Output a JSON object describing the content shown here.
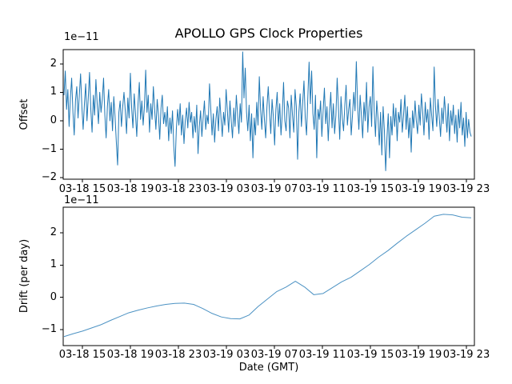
{
  "chart_data": [
    {
      "type": "line",
      "title": "APOLLO GPS Clock Properties",
      "ylabel": "Offset",
      "xlabel": "",
      "scale_label": "1e−11",
      "ylim": [
        -2.05,
        2.5
      ],
      "yticks": [
        2,
        1,
        0,
        -1,
        -2
      ],
      "ytick_labels": [
        "2",
        "1",
        "0",
        "−1",
        "−2"
      ],
      "xtick_labels": [
        "03-18 15",
        "03-18 19",
        "03-18 23",
        "03-19 03",
        "03-19 07",
        "03-19 11",
        "03-19 15",
        "03-19 19",
        "03-19 23"
      ],
      "line_color": "#1f77b4",
      "grid": false,
      "legend": null,
      "series": [
        {
          "name": "offset",
          "units": "1e-11",
          "values": [
            0.9,
            1.75,
            0.4,
            1.1,
            -0.2,
            0.8,
            1.5,
            0.3,
            -0.5,
            0.7,
            1.2,
            0.1,
            0.9,
            1.65,
            0.5,
            -0.3,
            0.6,
            1.3,
            0.0,
            0.8,
            1.7,
            0.4,
            -0.4,
            0.9,
            0.2,
            1.45,
            0.6,
            -0.1,
            1.0,
            0.3,
            0.75,
            1.5,
            0.2,
            -0.6,
            0.5,
            1.1,
            0.0,
            0.65,
            -0.35,
            0.85,
            0.15,
            -0.75,
            -1.55,
            0.3,
            0.7,
            -0.2,
            0.5,
            1.0,
            0.35,
            -0.45,
            0.8,
            0.1,
            1.67,
            0.45,
            -0.25,
            0.95,
            0.25,
            -0.55,
            0.6,
            1.35,
            0.05,
            0.7,
            -0.15,
            0.5,
            1.78,
            0.3,
            0.9,
            -0.4,
            0.6,
            0.05,
            1.2,
            0.4,
            -0.3,
            0.75,
            0.2,
            -0.65,
            0.45,
            0.9,
            -0.1,
            0.3,
            -0.2,
            0.5,
            -0.7,
            0.1,
            -0.45,
            0.35,
            -0.9,
            -1.6,
            -0.3,
            0.4,
            -0.15,
            0.6,
            -0.5,
            0.2,
            -0.8,
            0.0,
            0.45,
            -0.25,
            0.65,
            -0.05,
            0.3,
            -0.6,
            0.15,
            -0.4,
            0.55,
            -1.15,
            -0.2,
            0.35,
            -0.55,
            0.1,
            0.7,
            -0.3,
            0.2,
            -0.1,
            1.3,
            0.4,
            -0.5,
            0.25,
            -0.75,
            0.05,
            0.5,
            -0.35,
            0.8,
            0.1,
            -0.55,
            0.3,
            -0.15,
            1.1,
            0.35,
            -0.4,
            0.7,
            0.0,
            -0.6,
            0.45,
            -0.2,
            0.9,
            0.2,
            -0.45,
            0.6,
            -0.05,
            2.42,
            0.8,
            1.85,
            0.3,
            -0.35,
            0.55,
            -0.7,
            0.25,
            -1.3,
            0.1,
            -0.5,
            0.65,
            -0.15,
            1.55,
            0.4,
            -0.3,
            0.85,
            0.05,
            -0.6,
            0.5,
            1.2,
            0.3,
            -0.45,
            0.75,
            0.15,
            -0.85,
            0.4,
            1.0,
            -0.2,
            0.6,
            -0.5,
            0.25,
            1.35,
            0.0,
            -0.35,
            0.7,
            0.45,
            -0.6,
            0.9,
            0.2,
            -0.4,
            1.1,
            0.5,
            -1.35,
            0.3,
            0.95,
            -0.2,
            0.65,
            1.4,
            0.1,
            -0.5,
            0.8,
            2.06,
            0.6,
            1.75,
            0.25,
            -0.3,
            0.9,
            -1.3,
            0.4,
            0.05,
            0.7,
            -0.55,
            0.35,
            1.15,
            -0.1,
            0.5,
            -0.7,
            0.3,
            1.0,
            -0.25,
            0.6,
            -0.45,
            0.2,
            1.5,
            0.45,
            -0.65,
            0.85,
            0.1,
            -0.35,
            0.55,
            1.25,
            -0.15,
            0.4,
            0.75,
            -0.5,
            0.2,
            1.0,
            0.35,
            2.08,
            0.55,
            -0.3,
            0.9,
            0.15,
            -0.6,
            0.65,
            0.0,
            1.35,
            -0.4,
            0.5,
            0.85,
            -0.2,
            1.9,
            0.4,
            -0.55,
            0.7,
            0.1,
            -0.85,
            0.3,
            -1.2,
            0.5,
            -0.35,
            -1.75,
            -0.6,
            0.25,
            -1.3,
            0.15,
            -0.5,
            0.6,
            -0.2,
            0.45,
            -0.7,
            0.3,
            -0.05,
            0.75,
            -0.4,
            0.2,
            0.9,
            -0.3,
            0.5,
            -0.6,
            0.1,
            -1.1,
            0.35,
            -0.25,
            0.7,
            0.0,
            -0.45,
            0.55,
            -0.15,
            0.95,
            0.3,
            -0.5,
            0.65,
            -0.05,
            0.4,
            -0.65,
            0.8,
            0.2,
            -0.35,
            1.89,
            0.5,
            -0.2,
            0.75,
            0.1,
            -0.55,
            0.45,
            -0.1,
            0.85,
            0.25,
            -0.4,
            0.6,
            -0.7,
            0.35,
            -0.15,
            0.55,
            -0.45,
            0.2,
            -0.75,
            0.4,
            -0.25,
            0.65,
            -0.5,
            0.1,
            -0.9,
            0.3,
            -0.6,
            0.05,
            -0.4,
            -0.55
          ]
        }
      ]
    },
    {
      "type": "line",
      "title": "",
      "ylabel": "Drift (per day)",
      "xlabel": "Date (GMT)",
      "scale_label": "1e−11",
      "ylim": [
        -1.5,
        2.8
      ],
      "yticks": [
        2,
        1,
        0,
        -1
      ],
      "ytick_labels": [
        "2",
        "1",
        "0",
        "−1"
      ],
      "xtick_labels": [
        "03-18 15",
        "03-18 19",
        "03-18 23",
        "03-19 03",
        "03-19 07",
        "03-19 11",
        "03-19 15",
        "03-19 19",
        "03-19 23"
      ],
      "line_color": "#1f77b4",
      "grid": false,
      "legend": null,
      "series": [
        {
          "name": "drift",
          "units": "1e-11",
          "values": [
            -1.22,
            -1.13,
            -1.05,
            -0.95,
            -0.85,
            -0.72,
            -0.6,
            -0.48,
            -0.4,
            -0.33,
            -0.27,
            -0.22,
            -0.19,
            -0.18,
            -0.22,
            -0.35,
            -0.5,
            -0.61,
            -0.66,
            -0.67,
            -0.55,
            -0.28,
            -0.05,
            0.18,
            0.32,
            0.5,
            0.32,
            0.08,
            0.12,
            0.3,
            0.48,
            0.62,
            0.82,
            1.02,
            1.25,
            1.45,
            1.68,
            1.9,
            2.1,
            2.3,
            2.52,
            2.58,
            2.56,
            2.49,
            2.47
          ]
        }
      ]
    }
  ]
}
